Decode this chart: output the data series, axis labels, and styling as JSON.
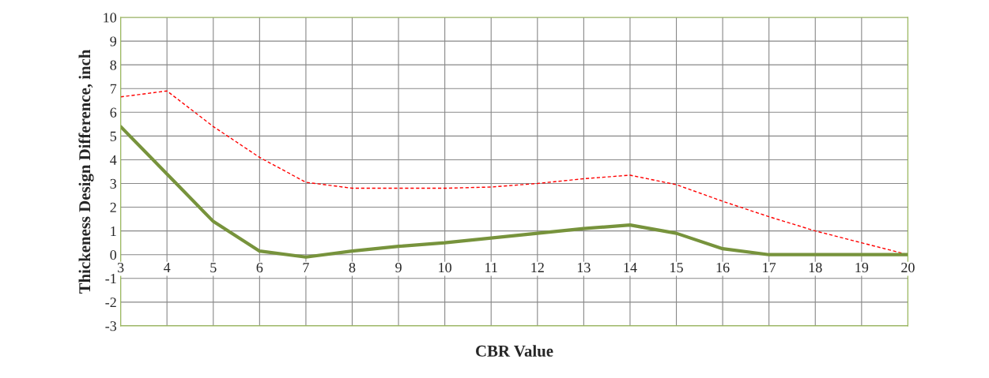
{
  "chart_data": {
    "type": "line",
    "xlabel": "CBR Value",
    "ylabel": "Thickeness Design Difference, inch",
    "x": [
      3,
      4,
      5,
      6,
      7,
      8,
      9,
      10,
      11,
      12,
      13,
      14,
      15,
      16,
      17,
      18,
      19,
      20
    ],
    "series": [
      {
        "color": "#ff0000",
        "line_style": "dashed",
        "values": [
          6.65,
          6.9,
          5.4,
          4.1,
          3.05,
          2.8,
          2.8,
          2.8,
          2.85,
          3.0,
          3.2,
          3.35,
          2.95,
          2.25,
          1.6,
          1.0,
          0.5,
          0.0
        ]
      },
      {
        "color": "#77933c",
        "line_style": "solid",
        "values": [
          5.4,
          3.4,
          1.4,
          0.15,
          -0.1,
          0.15,
          0.35,
          0.5,
          0.7,
          0.9,
          1.1,
          1.25,
          0.9,
          0.25,
          0.0,
          0.0,
          0.0,
          0.0
        ]
      }
    ],
    "xlim": [
      3,
      20
    ],
    "xticks": [
      3,
      4,
      5,
      6,
      7,
      8,
      9,
      10,
      11,
      12,
      13,
      14,
      15,
      16,
      17,
      18,
      19,
      20
    ],
    "ylim": [
      -3,
      10
    ],
    "yticks": [
      -3,
      -2,
      -1,
      0,
      1,
      2,
      3,
      4,
      5,
      6,
      7,
      8,
      9,
      10
    ],
    "grid": true,
    "marker": "none"
  }
}
